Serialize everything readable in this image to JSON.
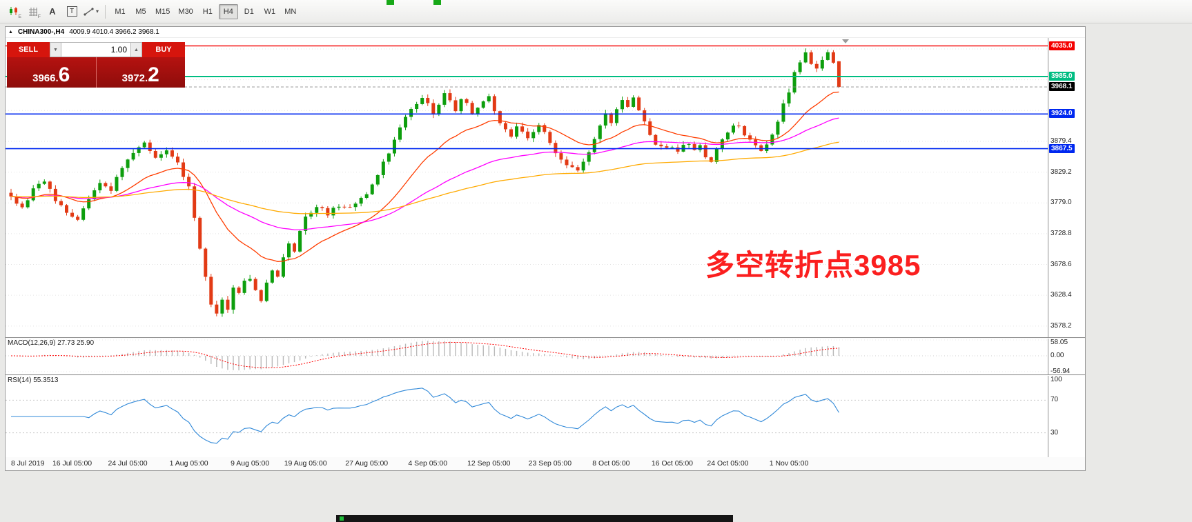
{
  "toolbar": {
    "icon_buttons": [
      {
        "name": "candlestick-chart-icon",
        "hint": "E"
      },
      {
        "name": "grid-icon",
        "hint": "F"
      },
      {
        "name": "text-letter-icon",
        "glyph": "A"
      },
      {
        "name": "text-box-icon",
        "glyph": "T"
      },
      {
        "name": "draw-tool-icon",
        "caret": "▾"
      }
    ],
    "timeframes": [
      "M1",
      "M5",
      "M15",
      "M30",
      "H1",
      "H4",
      "D1",
      "W1",
      "MN"
    ],
    "active_timeframe": "H4"
  },
  "chart": {
    "collapse_icon": "▲",
    "title": "CHINA300-,H4",
    "ohlc_text": "4009.9 4010.4 3966.2 3968.1",
    "trade_widget": {
      "sell_label": "SELL",
      "buy_label": "BUY",
      "volume": "1.00",
      "dropdown_glyph": "▼",
      "up_glyph": "▲",
      "sell_price_small": "3966.",
      "sell_price_big": "6",
      "buy_price_small": "3972.",
      "buy_price_big": "2"
    },
    "annotation": {
      "text": "多空转折点3985",
      "color": "#fb1f1f"
    },
    "price_axis": {
      "badges": [
        {
          "value": "4035.0",
          "price": 4035.0,
          "bg": "#f40000",
          "fg": "#ffffff"
        },
        {
          "value": "3985.0",
          "price": 3985.0,
          "bg": "#00bd82",
          "fg": "#ffffff"
        },
        {
          "value": "3968.1",
          "price": 3968.1,
          "bg": "#000000",
          "fg": "#ffffff"
        },
        {
          "value": "3924.0",
          "price": 3924.0,
          "bg": "#0028f0",
          "fg": "#ffffff"
        },
        {
          "value": "3867.5",
          "price": 3867.5,
          "bg": "#0028f0",
          "fg": "#ffffff"
        }
      ],
      "ticks": [
        {
          "value": "3879.4",
          "price": 3879.4
        },
        {
          "value": "3829.2",
          "price": 3829.2
        },
        {
          "value": "3779.0",
          "price": 3779.0
        },
        {
          "value": "3728.8",
          "price": 3728.8
        },
        {
          "value": "3678.6",
          "price": 3678.6
        },
        {
          "value": "3628.4",
          "price": 3628.4
        },
        {
          "value": "3578.2",
          "price": 3578.2
        }
      ]
    },
    "time_axis": [
      {
        "label": "8 Jul 2019",
        "bar": 0
      },
      {
        "label": "16 Jul 05:00",
        "bar": 11
      },
      {
        "label": "24 Jul 05:00",
        "bar": 21
      },
      {
        "label": "1 Aug 05:00",
        "bar": 32
      },
      {
        "label": "9 Aug 05:00",
        "bar": 43
      },
      {
        "label": "19 Aug 05:00",
        "bar": 53
      },
      {
        "label": "27 Aug 05:00",
        "bar": 64
      },
      {
        "label": "4 Sep 05:00",
        "bar": 75
      },
      {
        "label": "12 Sep 05:00",
        "bar": 86
      },
      {
        "label": "23 Sep 05:00",
        "bar": 97
      },
      {
        "label": "8 Oct 05:00",
        "bar": 108
      },
      {
        "label": "16 Oct 05:00",
        "bar": 119
      },
      {
        "label": "24 Oct 05:00",
        "bar": 129
      },
      {
        "label": "1 Nov 05:00",
        "bar": 140
      }
    ]
  },
  "macd_panel": {
    "label": "MACD(12,26,9) 27.73 25.90",
    "axis": [
      {
        "value": "58.05",
        "v": 58.05
      },
      {
        "value": "0.00",
        "v": 0
      },
      {
        "value": "-56.94",
        "v": -56.94
      }
    ]
  },
  "rsi_panel": {
    "label": "RSI(14) 55.3513",
    "axis": [
      {
        "value": "100",
        "v": 100
      },
      {
        "value": "70",
        "v": 70
      },
      {
        "value": "30",
        "v": 30
      }
    ]
  },
  "chart_data": {
    "type": "candlestick",
    "symbol": "CHINA300-",
    "timeframe": "H4",
    "title": "CHINA300-,H4 4009.9 4010.4 3966.2 3968.1",
    "bars": 150,
    "price_domain": [
      3560,
      4048
    ],
    "last_ohlc": {
      "open": 4009.9,
      "high": 4010.4,
      "low": 3966.2,
      "close": 3968.1
    },
    "close_waypoints": [
      [
        0,
        3790
      ],
      [
        2,
        3772
      ],
      [
        4,
        3800
      ],
      [
        6,
        3816
      ],
      [
        8,
        3782
      ],
      [
        10,
        3766
      ],
      [
        12,
        3752
      ],
      [
        14,
        3788
      ],
      [
        16,
        3814
      ],
      [
        18,
        3802
      ],
      [
        20,
        3836
      ],
      [
        22,
        3862
      ],
      [
        24,
        3876
      ],
      [
        26,
        3852
      ],
      [
        28,
        3866
      ],
      [
        30,
        3842
      ],
      [
        32,
        3806
      ],
      [
        33,
        3756
      ],
      [
        34,
        3706
      ],
      [
        35,
        3656
      ],
      [
        36,
        3614
      ],
      [
        37,
        3600
      ],
      [
        38,
        3622
      ],
      [
        39,
        3606
      ],
      [
        40,
        3640
      ],
      [
        41,
        3630
      ],
      [
        42,
        3652
      ],
      [
        43,
        3656
      ],
      [
        44,
        3636
      ],
      [
        45,
        3620
      ],
      [
        46,
        3652
      ],
      [
        47,
        3672
      ],
      [
        48,
        3660
      ],
      [
        49,
        3692
      ],
      [
        50,
        3712
      ],
      [
        51,
        3700
      ],
      [
        52,
        3732
      ],
      [
        53,
        3756
      ],
      [
        55,
        3772
      ],
      [
        57,
        3762
      ],
      [
        59,
        3776
      ],
      [
        61,
        3770
      ],
      [
        63,
        3786
      ],
      [
        64,
        3796
      ],
      [
        66,
        3826
      ],
      [
        68,
        3862
      ],
      [
        70,
        3902
      ],
      [
        72,
        3932
      ],
      [
        74,
        3952
      ],
      [
        75,
        3942
      ],
      [
        76,
        3922
      ],
      [
        77,
        3942
      ],
      [
        78,
        3956
      ],
      [
        79,
        3946
      ],
      [
        80,
        3932
      ],
      [
        81,
        3950
      ],
      [
        82,
        3940
      ],
      [
        83,
        3922
      ],
      [
        84,
        3932
      ],
      [
        85,
        3946
      ],
      [
        86,
        3950
      ],
      [
        87,
        3932
      ],
      [
        88,
        3912
      ],
      [
        89,
        3896
      ],
      [
        90,
        3886
      ],
      [
        91,
        3902
      ],
      [
        92,
        3892
      ],
      [
        93,
        3882
      ],
      [
        94,
        3896
      ],
      [
        95,
        3906
      ],
      [
        96,
        3892
      ],
      [
        97,
        3876
      ],
      [
        98,
        3862
      ],
      [
        99,
        3852
      ],
      [
        100,
        3842
      ],
      [
        101,
        3836
      ],
      [
        102,
        3832
      ],
      [
        103,
        3846
      ],
      [
        104,
        3862
      ],
      [
        105,
        3882
      ],
      [
        106,
        3902
      ],
      [
        107,
        3922
      ],
      [
        108,
        3912
      ],
      [
        109,
        3932
      ],
      [
        110,
        3946
      ],
      [
        111,
        3936
      ],
      [
        112,
        3950
      ],
      [
        113,
        3932
      ],
      [
        114,
        3912
      ],
      [
        115,
        3892
      ],
      [
        116,
        3876
      ],
      [
        117,
        3870
      ],
      [
        118,
        3866
      ],
      [
        119,
        3872
      ],
      [
        120,
        3862
      ],
      [
        121,
        3872
      ],
      [
        122,
        3876
      ],
      [
        123,
        3866
      ],
      [
        124,
        3872
      ],
      [
        125,
        3856
      ],
      [
        126,
        3846
      ],
      [
        127,
        3866
      ],
      [
        128,
        3882
      ],
      [
        129,
        3892
      ],
      [
        130,
        3902
      ],
      [
        131,
        3906
      ],
      [
        132,
        3892
      ],
      [
        133,
        3882
      ],
      [
        134,
        3872
      ],
      [
        135,
        3862
      ],
      [
        136,
        3876
      ],
      [
        137,
        3892
      ],
      [
        138,
        3912
      ],
      [
        139,
        3942
      ],
      [
        140,
        3962
      ],
      [
        141,
        3992
      ],
      [
        142,
        4008
      ],
      [
        143,
        4024
      ],
      [
        144,
        4008
      ],
      [
        145,
        3996
      ],
      [
        146,
        4010
      ],
      [
        147,
        4022
      ],
      [
        148,
        4010
      ],
      [
        149,
        3968.1
      ]
    ],
    "levels": [
      {
        "price": 4035.0,
        "color": "#f40000",
        "width": 1.4
      },
      {
        "price": 3985.0,
        "color": "#00bd82",
        "width": 2
      },
      {
        "price": 3924.0,
        "color": "#0028f0",
        "width": 1.6
      },
      {
        "price": 3867.5,
        "color": "#0028f0",
        "width": 1.6
      }
    ],
    "current_price": 3968.1,
    "up_color": "#0d9e0d",
    "down_color": "#e23a15",
    "ma": [
      {
        "period": 20,
        "color": "#ff3d00"
      },
      {
        "period": 55,
        "color": "#ff00ff"
      },
      {
        "period": 120,
        "color": "#ffaa00"
      }
    ],
    "macd": {
      "fast": 12,
      "slow": 26,
      "signal": 9,
      "current_macd": 27.73,
      "current_signal": 25.9,
      "hist_color": "#b9b9b9",
      "signal_color": "#ff0000",
      "scale_max": 58.05
    },
    "rsi": {
      "period": 14,
      "current": 55.3513,
      "color": "#2f88d8",
      "levels": [
        70,
        30
      ]
    },
    "grid": {
      "base": 3578.2,
      "step": 50.2
    },
    "seed": 77
  }
}
